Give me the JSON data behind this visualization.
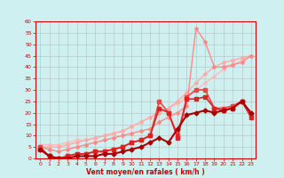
{
  "xlabel": "Vent moyen/en rafales ( km/h )",
  "bg_color": "#cff0f0",
  "grid_color": "#bbbbbb",
  "xlim": [
    -0.5,
    23.5
  ],
  "ylim": [
    0,
    60
  ],
  "yticks": [
    0,
    5,
    10,
    15,
    20,
    25,
    30,
    35,
    40,
    45,
    50,
    55,
    60
  ],
  "xticks": [
    0,
    1,
    2,
    3,
    4,
    5,
    6,
    7,
    8,
    9,
    10,
    11,
    12,
    13,
    14,
    15,
    16,
    17,
    18,
    19,
    20,
    21,
    22,
    23
  ],
  "series": [
    {
      "x": [
        0,
        1,
        2,
        3,
        4,
        5,
        6,
        7,
        8,
        9,
        10,
        11,
        12,
        13,
        14,
        15,
        16,
        17,
        18,
        19,
        20,
        21,
        22,
        23
      ],
      "y": [
        6,
        6,
        6,
        7,
        8,
        8,
        9,
        10,
        11,
        12,
        14,
        16,
        18,
        20,
        22,
        24,
        27,
        30,
        33,
        36,
        39,
        41,
        43,
        45
      ],
      "color": "#ffbbbb",
      "lw": 1.0,
      "marker": "D",
      "ms": 2.0
    },
    {
      "x": [
        0,
        1,
        2,
        3,
        4,
        5,
        6,
        7,
        8,
        9,
        10,
        11,
        12,
        13,
        14,
        15,
        16,
        17,
        18,
        19,
        20,
        21,
        22,
        23
      ],
      "y": [
        5,
        5,
        5,
        6,
        7,
        8,
        9,
        10,
        11,
        12,
        14,
        16,
        18,
        20,
        22,
        25,
        29,
        33,
        37,
        40,
        42,
        43,
        44,
        45
      ],
      "color": "#ffaaaa",
      "lw": 1.0,
      "marker": "D",
      "ms": 2.0
    },
    {
      "x": [
        0,
        1,
        2,
        3,
        4,
        5,
        6,
        7,
        8,
        9,
        10,
        11,
        12,
        13,
        14,
        15,
        16,
        17,
        18,
        19,
        20,
        21,
        22,
        23
      ],
      "y": [
        5,
        4,
        3,
        4,
        5,
        6,
        7,
        8,
        9,
        10,
        11,
        12,
        13,
        16,
        18,
        20,
        23,
        57,
        51,
        40,
        40,
        41,
        42,
        45
      ],
      "color": "#ff8888",
      "lw": 1.0,
      "marker": "D",
      "ms": 2.0
    },
    {
      "x": [
        0,
        1,
        2,
        3,
        4,
        5,
        6,
        7,
        8,
        9,
        10,
        11,
        12,
        13,
        14,
        15,
        16,
        17,
        18,
        19,
        20,
        21,
        22,
        23
      ],
      "y": [
        5,
        1,
        0,
        1,
        2,
        2,
        3,
        3,
        4,
        5,
        7,
        8,
        10,
        25,
        20,
        10,
        27,
        30,
        30,
        22,
        22,
        23,
        25,
        19
      ],
      "color": "#ee4444",
      "lw": 1.2,
      "marker": "s",
      "ms": 2.5
    },
    {
      "x": [
        0,
        1,
        2,
        3,
        4,
        5,
        6,
        7,
        8,
        9,
        10,
        11,
        12,
        13,
        14,
        15,
        16,
        17,
        18,
        19,
        20,
        21,
        22,
        23
      ],
      "y": [
        4,
        1,
        0,
        1,
        2,
        2,
        3,
        3,
        4,
        5,
        7,
        8,
        10,
        22,
        20,
        9,
        26,
        26,
        27,
        22,
        21,
        22,
        25,
        18
      ],
      "color": "#dd2222",
      "lw": 1.2,
      "marker": "s",
      "ms": 2.5
    },
    {
      "x": [
        0,
        1,
        2,
        3,
        4,
        5,
        6,
        7,
        8,
        9,
        10,
        11,
        12,
        13,
        14,
        15,
        16,
        17,
        18,
        19,
        20,
        21,
        22,
        23
      ],
      "y": [
        4,
        1,
        0,
        0,
        1,
        1,
        1,
        2,
        2,
        3,
        4,
        5,
        7,
        9,
        7,
        13,
        19,
        20,
        21,
        20,
        21,
        22,
        25,
        20
      ],
      "color": "#aa0000",
      "lw": 1.5,
      "marker": "D",
      "ms": 2.5
    }
  ]
}
